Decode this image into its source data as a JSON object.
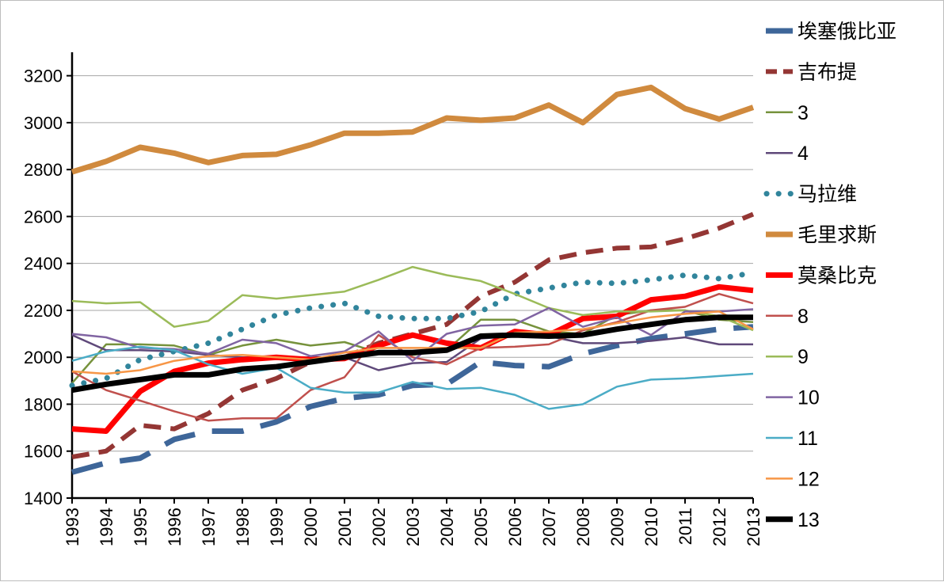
{
  "chart_data": {
    "type": "line",
    "title": "",
    "xlabel": "",
    "ylabel": "",
    "x": [
      1993,
      1994,
      1995,
      1996,
      1997,
      1998,
      1999,
      2000,
      2001,
      2002,
      2003,
      2004,
      2005,
      2006,
      2007,
      2008,
      2009,
      2010,
      2011,
      2012,
      2013
    ],
    "x_tick_labels": [
      "1993",
      "1994",
      "1995",
      "1996",
      "1997",
      "1998",
      "1999",
      "2000",
      "2001",
      "2002",
      "2003",
      "2004",
      "2005",
      "2006",
      "2007",
      "2008",
      "2009",
      "2010",
      "2011",
      "2012",
      "2013"
    ],
    "ylim": [
      1400,
      3300
    ],
    "y_ticks": [
      1400,
      1600,
      1800,
      2000,
      2200,
      2400,
      2600,
      2800,
      3000,
      3200
    ],
    "y_tick_labels": [
      "1400",
      "1600",
      "1800",
      "2000",
      "2200",
      "2400",
      "2600",
      "2800",
      "3000",
      "3200"
    ],
    "grid": "horizontal",
    "legend_position": "right",
    "series": [
      {
        "name": "埃塞俄比亚",
        "color": "#3E6699",
        "style": "long-dash",
        "width": 7,
        "values": [
          1510,
          1550,
          1570,
          1650,
          1685,
          1685,
          1725,
          1790,
          1825,
          1840,
          1880,
          1885,
          1980,
          1965,
          1960,
          2015,
          2050,
          2080,
          2100,
          2120,
          2130
        ]
      },
      {
        "name": "吉布提",
        "color": "#943634",
        "style": "dash",
        "width": 6,
        "values": [
          1575,
          1600,
          1710,
          1695,
          1760,
          1860,
          1910,
          1980,
          2000,
          2060,
          2100,
          2140,
          2260,
          2320,
          2415,
          2445,
          2465,
          2470,
          2505,
          2550,
          2610
        ]
      },
      {
        "name": "3",
        "color": "#76923C",
        "style": "solid",
        "width": 2.5,
        "values": [
          1890,
          2055,
          2055,
          2050,
          2010,
          2050,
          2075,
          2050,
          2065,
          2020,
          2010,
          2030,
          2160,
          2160,
          2110,
          2100,
          2180,
          2200,
          2200,
          2160,
          2150
        ]
      },
      {
        "name": "4",
        "color": "#5F497A",
        "style": "solid",
        "width": 2.5,
        "values": [
          2095,
          2030,
          2030,
          2025,
          2010,
          2000,
          2000,
          2000,
          2000,
          1945,
          1975,
          1980,
          2080,
          2090,
          2090,
          2060,
          2060,
          2070,
          2085,
          2055,
          2055
        ]
      },
      {
        "name": "马拉维",
        "color": "#31859C",
        "style": "dots",
        "width": 7,
        "values": [
          1880,
          1910,
          1990,
          2025,
          2060,
          2120,
          2180,
          2210,
          2230,
          2175,
          2165,
          2165,
          2195,
          2270,
          2295,
          2320,
          2315,
          2330,
          2350,
          2335,
          2360
        ]
      },
      {
        "name": "毛里求斯",
        "color": "#D08A3E",
        "style": "solid",
        "width": 7,
        "values": [
          2790,
          2835,
          2895,
          2870,
          2830,
          2860,
          2865,
          2905,
          2955,
          2955,
          2960,
          3020,
          3010,
          3020,
          3075,
          3000,
          3120,
          3150,
          3060,
          3015,
          3065
        ]
      },
      {
        "name": "莫桑比克",
        "color": "#FF0000",
        "style": "solid",
        "width": 7,
        "values": [
          1695,
          1685,
          1855,
          1940,
          1975,
          1990,
          2000,
          1990,
          1995,
          2050,
          2095,
          2060,
          2040,
          2110,
          2095,
          2165,
          2175,
          2245,
          2260,
          2300,
          2285
        ]
      },
      {
        "name": "8",
        "color": "#C0504D",
        "style": "solid",
        "width": 2.5,
        "values": [
          1940,
          1860,
          1815,
          1770,
          1730,
          1740,
          1740,
          1860,
          1915,
          2095,
          2000,
          1970,
          2040,
          2045,
          2055,
          2115,
          2150,
          2200,
          2215,
          2270,
          2230
        ]
      },
      {
        "name": "9",
        "color": "#9BBB59",
        "style": "solid",
        "width": 2.5,
        "values": [
          2240,
          2230,
          2235,
          2130,
          2155,
          2265,
          2250,
          2265,
          2280,
          2330,
          2385,
          2350,
          2325,
          2270,
          2210,
          2180,
          2195,
          2195,
          2200,
          2175,
          2115
        ]
      },
      {
        "name": "10",
        "color": "#8064A2",
        "style": "solid",
        "width": 2.5,
        "values": [
          2100,
          2085,
          2040,
          2035,
          2015,
          2075,
          2060,
          2005,
          2025,
          2110,
          1985,
          2100,
          2135,
          2140,
          2210,
          2130,
          2170,
          2095,
          2195,
          2195,
          2205
        ]
      },
      {
        "name": "11",
        "color": "#4BACC6",
        "style": "solid",
        "width": 2.5,
        "values": [
          1985,
          2025,
          2045,
          2030,
          1970,
          1930,
          1955,
          1870,
          1850,
          1850,
          1895,
          1865,
          1870,
          1840,
          1780,
          1800,
          1875,
          1905,
          1910,
          1920,
          1930
        ]
      },
      {
        "name": "12",
        "color": "#F79646",
        "style": "solid",
        "width": 2.5,
        "values": [
          1940,
          1930,
          1945,
          1985,
          2005,
          2010,
          2000,
          1990,
          2020,
          2040,
          2040,
          2040,
          2040,
          2105,
          2110,
          2120,
          2145,
          2170,
          2185,
          2195,
          2120
        ]
      },
      {
        "name": "13",
        "color": "#000000",
        "style": "solid",
        "width": 7,
        "values": [
          1860,
          1885,
          1905,
          1925,
          1925,
          1950,
          1960,
          1980,
          2000,
          2020,
          2020,
          2030,
          2090,
          2095,
          2090,
          2095,
          2120,
          2140,
          2160,
          2170,
          2170
        ]
      }
    ]
  }
}
